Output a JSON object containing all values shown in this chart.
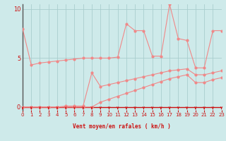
{
  "background_color": "#ceeaea",
  "grid_color": "#aacece",
  "line_color": "#f08888",
  "axis_color": "#cc1111",
  "left_spine_color": "#555555",
  "xlabel": "Vent moyen/en rafales ( km/h )",
  "xlim": [
    0,
    23
  ],
  "ylim": [
    -0.3,
    10.5
  ],
  "yticks": [
    0,
    5,
    10
  ],
  "xticks": [
    0,
    1,
    2,
    3,
    4,
    5,
    6,
    7,
    8,
    9,
    10,
    11,
    12,
    13,
    14,
    15,
    16,
    17,
    18,
    19,
    20,
    21,
    22,
    23
  ],
  "line1_x": [
    0,
    1,
    2,
    3,
    4,
    5,
    6,
    7,
    8,
    9,
    10,
    11,
    12,
    13,
    14,
    15,
    16,
    17,
    18,
    19,
    20,
    21,
    22,
    23
  ],
  "line1_y": [
    8.0,
    4.3,
    4.5,
    4.6,
    4.7,
    4.8,
    4.9,
    5.0,
    5.0,
    5.0,
    5.0,
    5.1,
    8.5,
    7.8,
    7.8,
    5.2,
    5.2,
    10.5,
    7.0,
    6.8,
    4.0,
    4.0,
    7.8,
    7.8
  ],
  "line2_x": [
    0,
    1,
    2,
    3,
    4,
    5,
    6,
    7,
    8,
    9,
    10,
    11,
    12,
    13,
    14,
    15,
    16,
    17,
    18,
    19,
    20,
    21,
    22,
    23
  ],
  "line2_y": [
    0.0,
    0.0,
    0.0,
    0.0,
    0.0,
    0.1,
    0.1,
    0.1,
    3.5,
    2.1,
    2.3,
    2.5,
    2.7,
    2.9,
    3.1,
    3.3,
    3.5,
    3.7,
    3.8,
    3.9,
    3.3,
    3.3,
    3.5,
    3.7
  ],
  "line3_x": [
    0,
    1,
    2,
    3,
    4,
    5,
    6,
    7,
    8,
    9,
    10,
    11,
    12,
    13,
    14,
    15,
    16,
    17,
    18,
    19,
    20,
    21,
    22,
    23
  ],
  "line3_y": [
    0.0,
    0.0,
    0.0,
    0.0,
    0.0,
    0.0,
    0.0,
    0.0,
    0.0,
    0.5,
    0.8,
    1.1,
    1.4,
    1.7,
    2.0,
    2.3,
    2.6,
    2.9,
    3.1,
    3.3,
    2.5,
    2.5,
    2.8,
    3.0
  ]
}
